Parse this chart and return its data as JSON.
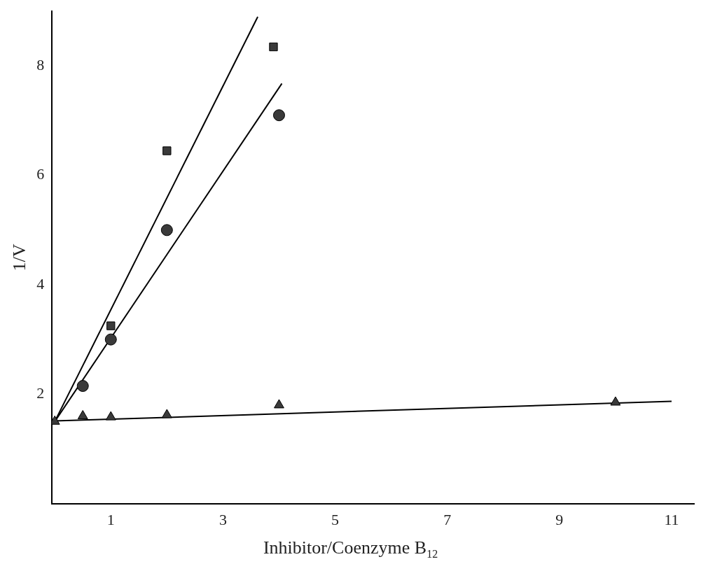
{
  "chart_data": {
    "type": "scatter",
    "xlabel": "Inhibitor/Coenzyme B$_{12}$",
    "ylabel": "1/V",
    "xlim": [
      -0.05,
      11.4
    ],
    "ylim": [
      0,
      9
    ],
    "xticks": [
      1,
      3,
      5,
      7,
      9,
      11
    ],
    "yticks": [
      2,
      4,
      6,
      8
    ],
    "grid": false,
    "legend": false,
    "series": [
      {
        "marker": "square",
        "color": "#3a3a3a",
        "x": [
          1,
          2,
          3.9
        ],
        "values": [
          3.25,
          6.45,
          8.35
        ]
      },
      {
        "marker": "circle",
        "color": "#3a3a3a",
        "x": [
          0.5,
          1,
          2,
          4
        ],
        "values": [
          2.15,
          3.0,
          5.0,
          7.1
        ]
      },
      {
        "marker": "triangle",
        "color": "#3a3a3a",
        "x": [
          0,
          0.5,
          1,
          2,
          4,
          10
        ],
        "values": [
          1.5,
          1.6,
          1.58,
          1.62,
          1.8,
          1.85
        ]
      },
      {
        "type": "line",
        "marker": "none",
        "color": "#000000",
        "x": [
          0,
          3.62
        ],
        "values": [
          1.5,
          8.9
        ]
      },
      {
        "type": "line",
        "marker": "none",
        "color": "#000000",
        "x": [
          0,
          4.05
        ],
        "values": [
          1.5,
          7.68
        ]
      },
      {
        "type": "line",
        "marker": "none",
        "color": "#000000",
        "x": [
          0,
          11
        ],
        "values": [
          1.51,
          1.87
        ]
      }
    ]
  }
}
